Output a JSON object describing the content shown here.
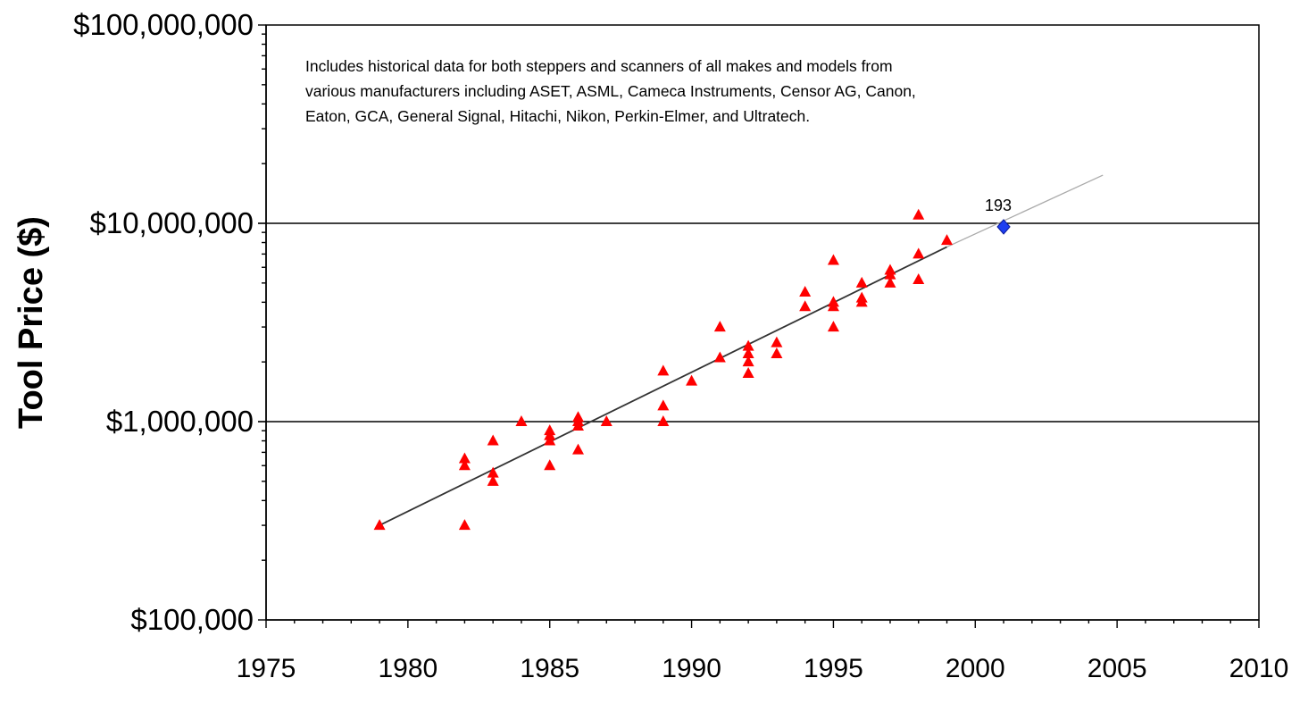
{
  "chart_data": {
    "type": "scatter",
    "title": "",
    "ylabel": "Tool Price ($)",
    "xlabel": "",
    "y_scale": "log",
    "xlim": [
      1975,
      2010
    ],
    "ylim": [
      100000,
      100000000
    ],
    "x_ticks": [
      "1975",
      "1980",
      "1985",
      "1990",
      "1995",
      "2000",
      "2005",
      "2010"
    ],
    "y_ticks": [
      {
        "value": 100000,
        "label": "$100,000"
      },
      {
        "value": 1000000,
        "label": "$1,000,000"
      },
      {
        "value": 10000000,
        "label": "$10,000,000"
      },
      {
        "value": 100000000,
        "label": "$100,000,000"
      }
    ],
    "gridlines_y": [
      1000000,
      10000000
    ],
    "annotation": {
      "lines": [
        "Includes historical data for both steppers and scanners of all makes and models from",
        "various manufacturers including ASET, ASML, Cameca Instruments, Censor AG, Canon,",
        "Eaton, GCA, General Signal, Hitachi, Nikon, Perkin-Elmer, and Ultratech."
      ]
    },
    "series": [
      {
        "marker": "triangle",
        "color": "#ff0000",
        "points": [
          [
            1979,
            300000
          ],
          [
            1982,
            650000
          ],
          [
            1982,
            600000
          ],
          [
            1982,
            300000
          ],
          [
            1983,
            800000
          ],
          [
            1983,
            550000
          ],
          [
            1983,
            500000
          ],
          [
            1984,
            1000000
          ],
          [
            1985,
            900000
          ],
          [
            1985,
            850000
          ],
          [
            1985,
            800000
          ],
          [
            1985,
            600000
          ],
          [
            1986,
            1050000
          ],
          [
            1986,
            1000000
          ],
          [
            1986,
            950000
          ],
          [
            1986,
            720000
          ],
          [
            1987,
            1000000
          ],
          [
            1989,
            1800000
          ],
          [
            1989,
            1200000
          ],
          [
            1989,
            1000000
          ],
          [
            1990,
            1600000
          ],
          [
            1991,
            3000000
          ],
          [
            1991,
            2100000
          ],
          [
            1992,
            2400000
          ],
          [
            1992,
            2200000
          ],
          [
            1992,
            2000000
          ],
          [
            1992,
            1750000
          ],
          [
            1993,
            2500000
          ],
          [
            1993,
            2200000
          ],
          [
            1994,
            4500000
          ],
          [
            1994,
            3800000
          ],
          [
            1995,
            6500000
          ],
          [
            1995,
            4000000
          ],
          [
            1995,
            3800000
          ],
          [
            1995,
            3000000
          ],
          [
            1996,
            5000000
          ],
          [
            1996,
            4200000
          ],
          [
            1996,
            4000000
          ],
          [
            1997,
            5800000
          ],
          [
            1997,
            5500000
          ],
          [
            1997,
            5000000
          ],
          [
            1998,
            11000000
          ],
          [
            1998,
            7000000
          ],
          [
            1998,
            5200000
          ],
          [
            1999,
            8200000
          ]
        ]
      },
      {
        "name": "193",
        "marker": "diamond",
        "color": "#1e3ff0",
        "points": [
          [
            2001,
            9600000
          ]
        ]
      }
    ],
    "trendline": {
      "solid": [
        [
          1979,
          300000
        ],
        [
          1999,
          7600000
        ]
      ],
      "extension": [
        [
          1999,
          7600000
        ],
        [
          2004.5,
          17500000
        ]
      ]
    }
  }
}
